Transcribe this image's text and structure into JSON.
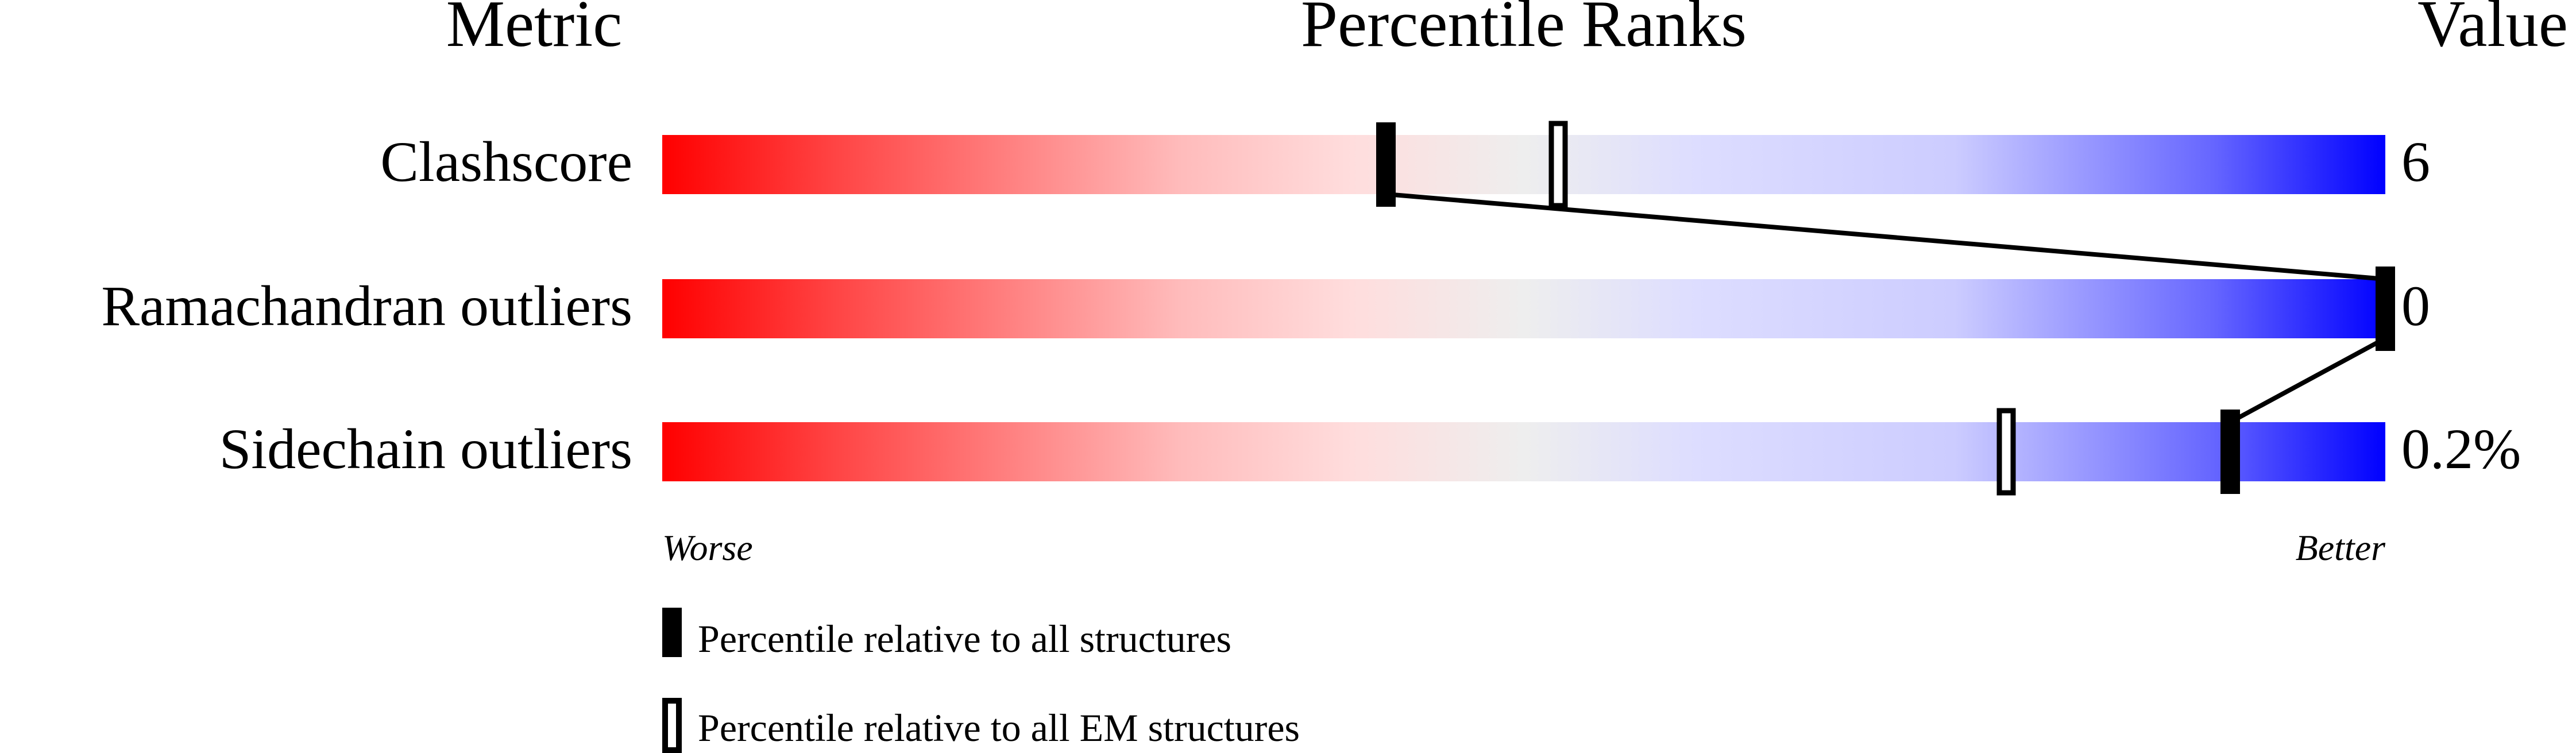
{
  "chart_data": {
    "type": "percentile-slider",
    "headers": {
      "metric": "Metric",
      "ranks": "Percentile Ranks",
      "value": "Value"
    },
    "rows": [
      {
        "metric": "Clashscore",
        "value": "6",
        "percentile_all": 42,
        "percentile_em": 52
      },
      {
        "metric": "Ramachandran outliers",
        "value": "0",
        "percentile_all": 100,
        "percentile_em": null
      },
      {
        "metric": "Sidechain outliers",
        "value": "0.2%",
        "percentile_all": 91,
        "percentile_em": 78
      }
    ],
    "xlim": [
      0,
      100
    ],
    "axis_labels": {
      "left": "Worse",
      "right": "Better"
    },
    "legend": [
      {
        "marker": "filled",
        "label": "Percentile relative to all structures"
      },
      {
        "marker": "open",
        "label": "Percentile relative to all EM structures"
      }
    ],
    "gradient_colors": [
      "#ff0000",
      "#ffdddd",
      "#eeeeee",
      "#ddddff",
      "#0000ff"
    ]
  }
}
